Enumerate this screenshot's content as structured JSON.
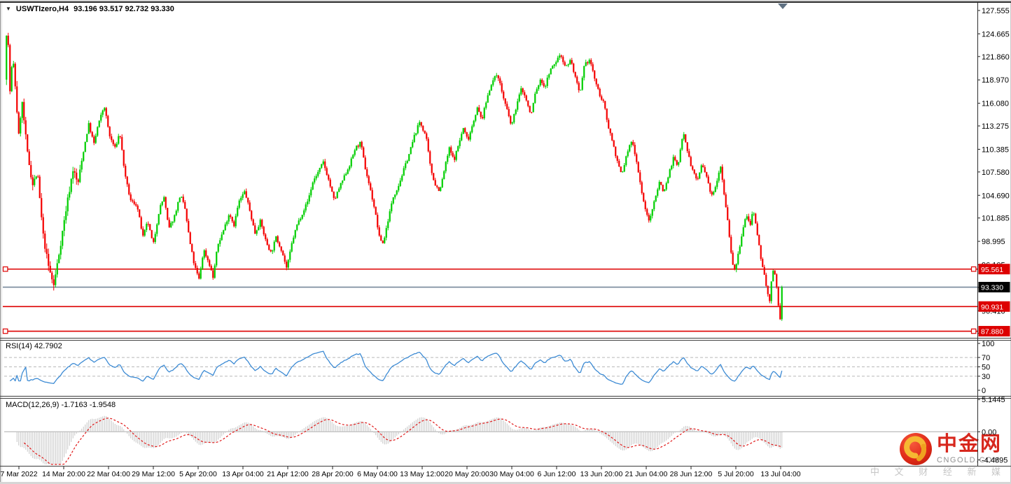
{
  "header": {
    "symbol": "USWTIzero,H4",
    "ohlc": "93.196 93.517 92.732 93.330"
  },
  "indicators": {
    "rsi_label": "RSI(14) 42.7902",
    "macd_label": "MACD(12,26,9) -1.7163 -1.9548"
  },
  "watermark": {
    "brand": "中金网",
    "domain": "CNGOLD.COM",
    "tagline": "中 文 财 经 新 媒 体"
  },
  "colors": {
    "up": "#00CE00",
    "down": "#F40000",
    "rsi_line": "#3D8BD4",
    "level_dash": "#b8b8b8",
    "macd_hist": "#c6c6c6",
    "macd_signal": "#E01818",
    "macd_zero": "#aaaaaa",
    "hline": "#DD0000",
    "current_line": "#77889A",
    "axis_text": "#000000",
    "frame_dark": "#3c3c3c",
    "brand_red": "#d7271d",
    "domain_gray": "#909090",
    "tagline_gray": "#c6c6c6",
    "scroll_marker": "#5f7182"
  },
  "chart_data": {
    "type": "candlestick",
    "symbol": "USWTIzero",
    "timeframe": "H4",
    "current_bar": {
      "open": 93.196,
      "high": 93.517,
      "low": 92.732,
      "close": 93.33
    },
    "bars": 444,
    "price_axis_ticks": [
      127.555,
      124.665,
      121.86,
      118.97,
      116.08,
      113.275,
      110.385,
      107.58,
      104.69,
      101.885,
      98.995,
      96.105,
      93.3,
      90.41,
      87.605
    ],
    "horizontal_lines": [
      {
        "price": 95.561,
        "label": "95.561",
        "selected": true
      },
      {
        "price": 90.931,
        "label": "90.931",
        "selected": false
      },
      {
        "price": 87.88,
        "label": "87.880",
        "selected": true
      }
    ],
    "current_price_line": {
      "price": 93.33,
      "label": "93.330"
    },
    "rsi": {
      "period": 14,
      "current": 42.7902,
      "ticks": [
        100,
        70,
        50,
        30,
        0
      ],
      "levels": [
        70,
        50,
        30
      ]
    },
    "macd": {
      "fast": 12,
      "slow": 26,
      "signal": 9,
      "current": -1.7163,
      "signal_current": -1.9548,
      "ticks": [
        {
          "value": 5.1445,
          "label": "5.1445"
        },
        {
          "value": 0,
          "label": "0.00"
        },
        {
          "value": -4.4895,
          "label": "-4.4895"
        }
      ]
    },
    "time_labels": [
      "7 Mar 2022",
      "14 Mar 20:00",
      "22 Mar 04:00",
      "29 Mar 12:00",
      "5 Apr 20:00",
      "13 Apr 04:00",
      "21 Apr 12:00",
      "28 Apr 20:00",
      "6 May 04:00",
      "13 May 12:00",
      "20 May 20:00",
      "30 May 04:00",
      "6 Jun 12:00",
      "13 Jun 20:00",
      "21 Jun 04:00",
      "28 Jun 12:00",
      "5 Jul 20:00",
      "13 Jul 04:00"
    ],
    "price_path": [
      [
        0,
        119
      ],
      [
        0.003,
        126.8
      ],
      [
        0.007,
        117
      ],
      [
        0.01,
        122
      ],
      [
        0.013,
        119
      ],
      [
        0.018,
        112
      ],
      [
        0.022,
        116.5
      ],
      [
        0.029,
        110
      ],
      [
        0.036,
        106
      ],
      [
        0.042,
        107.5
      ],
      [
        0.049,
        100
      ],
      [
        0.056,
        96
      ],
      [
        0.063,
        93.5
      ],
      [
        0.069,
        97
      ],
      [
        0.079,
        103
      ],
      [
        0.088,
        108
      ],
      [
        0.094,
        106
      ],
      [
        0.101,
        110
      ],
      [
        0.108,
        113.5
      ],
      [
        0.115,
        111
      ],
      [
        0.119,
        113
      ],
      [
        0.128,
        115.8
      ],
      [
        0.135,
        112
      ],
      [
        0.142,
        110.5
      ],
      [
        0.148,
        112.5
      ],
      [
        0.155,
        107
      ],
      [
        0.162,
        104
      ],
      [
        0.17,
        103.5
      ],
      [
        0.178,
        99.5
      ],
      [
        0.184,
        101.5
      ],
      [
        0.191,
        98.5
      ],
      [
        0.199,
        103
      ],
      [
        0.205,
        104.5
      ],
      [
        0.211,
        100.5
      ],
      [
        0.218,
        102
      ],
      [
        0.226,
        104.8
      ],
      [
        0.232,
        103
      ],
      [
        0.238,
        99
      ],
      [
        0.244,
        96
      ],
      [
        0.25,
        94.3
      ],
      [
        0.256,
        98
      ],
      [
        0.264,
        96
      ],
      [
        0.268,
        94.5
      ],
      [
        0.274,
        98.5
      ],
      [
        0.282,
        100.5
      ],
      [
        0.289,
        102.5
      ],
      [
        0.295,
        101
      ],
      [
        0.301,
        103.8
      ],
      [
        0.309,
        105.2
      ],
      [
        0.316,
        102.5
      ],
      [
        0.322,
        100
      ],
      [
        0.329,
        101.5
      ],
      [
        0.336,
        99
      ],
      [
        0.343,
        97.5
      ],
      [
        0.349,
        99.5
      ],
      [
        0.356,
        98
      ],
      [
        0.363,
        95.6
      ],
      [
        0.37,
        99
      ],
      [
        0.376,
        101
      ],
      [
        0.383,
        102.5
      ],
      [
        0.39,
        104
      ],
      [
        0.397,
        106.5
      ],
      [
        0.403,
        107.5
      ],
      [
        0.41,
        108.8
      ],
      [
        0.417,
        106.5
      ],
      [
        0.424,
        104
      ],
      [
        0.43,
        105.5
      ],
      [
        0.437,
        107
      ],
      [
        0.444,
        108.5
      ],
      [
        0.451,
        110.5
      ],
      [
        0.458,
        111.2
      ],
      [
        0.464,
        108
      ],
      [
        0.469,
        106
      ],
      [
        0.476,
        103
      ],
      [
        0.482,
        99.5
      ],
      [
        0.487,
        98.7
      ],
      [
        0.494,
        102
      ],
      [
        0.5,
        104.5
      ],
      [
        0.507,
        106
      ],
      [
        0.514,
        108
      ],
      [
        0.521,
        110
      ],
      [
        0.527,
        112
      ],
      [
        0.534,
        113.8
      ],
      [
        0.542,
        112
      ],
      [
        0.548,
        108
      ],
      [
        0.554,
        106
      ],
      [
        0.56,
        105.2
      ],
      [
        0.566,
        108
      ],
      [
        0.572,
        110.5
      ],
      [
        0.578,
        109
      ],
      [
        0.584,
        111
      ],
      [
        0.59,
        113
      ],
      [
        0.596,
        111.5
      ],
      [
        0.602,
        113.5
      ],
      [
        0.608,
        115.5
      ],
      [
        0.614,
        114
      ],
      [
        0.62,
        116.5
      ],
      [
        0.626,
        118.5
      ],
      [
        0.634,
        119.8
      ],
      [
        0.641,
        117
      ],
      [
        0.647,
        115
      ],
      [
        0.652,
        113.2
      ],
      [
        0.659,
        116
      ],
      [
        0.665,
        118
      ],
      [
        0.671,
        116.5
      ],
      [
        0.677,
        114.5
      ],
      [
        0.683,
        117.5
      ],
      [
        0.69,
        119
      ],
      [
        0.695,
        118
      ],
      [
        0.701,
        120
      ],
      [
        0.708,
        121
      ],
      [
        0.715,
        122.2
      ],
      [
        0.722,
        120.5
      ],
      [
        0.728,
        121.5
      ],
      [
        0.735,
        119
      ],
      [
        0.74,
        117
      ],
      [
        0.746,
        120.8
      ],
      [
        0.753,
        121.5
      ],
      [
        0.758,
        119.5
      ],
      [
        0.764,
        117.5
      ],
      [
        0.771,
        116
      ],
      [
        0.776,
        113.5
      ],
      [
        0.783,
        111
      ],
      [
        0.789,
        108.5
      ],
      [
        0.794,
        107.2
      ],
      [
        0.801,
        110
      ],
      [
        0.807,
        111.5
      ],
      [
        0.812,
        109.5
      ],
      [
        0.819,
        105.5
      ],
      [
        0.825,
        102.5
      ],
      [
        0.83,
        101.5
      ],
      [
        0.837,
        104.5
      ],
      [
        0.843,
        106.5
      ],
      [
        0.848,
        105
      ],
      [
        0.855,
        107.5
      ],
      [
        0.861,
        109.5
      ],
      [
        0.866,
        108
      ],
      [
        0.873,
        112.8
      ],
      [
        0.879,
        110
      ],
      [
        0.884,
        108
      ],
      [
        0.891,
        106.5
      ],
      [
        0.897,
        108.5
      ],
      [
        0.903,
        107
      ],
      [
        0.909,
        104.5
      ],
      [
        0.915,
        106
      ],
      [
        0.921,
        108.5
      ],
      [
        0.927,
        104
      ],
      [
        0.931,
        101
      ],
      [
        0.936,
        96.5
      ],
      [
        0.94,
        95.3
      ],
      [
        0.945,
        98
      ],
      [
        0.95,
        100.5
      ],
      [
        0.954,
        102.3
      ],
      [
        0.959,
        101
      ],
      [
        0.963,
        102.8
      ],
      [
        0.968,
        100
      ],
      [
        0.972,
        97.5
      ],
      [
        0.977,
        95
      ],
      [
        0.981,
        93
      ],
      [
        0.984,
        91.2
      ],
      [
        0.987,
        94.5
      ],
      [
        0.99,
        95.8
      ],
      [
        0.993,
        93.5
      ],
      [
        0.995,
        92
      ],
      [
        0.997,
        88
      ],
      [
        1,
        93.33
      ]
    ]
  }
}
